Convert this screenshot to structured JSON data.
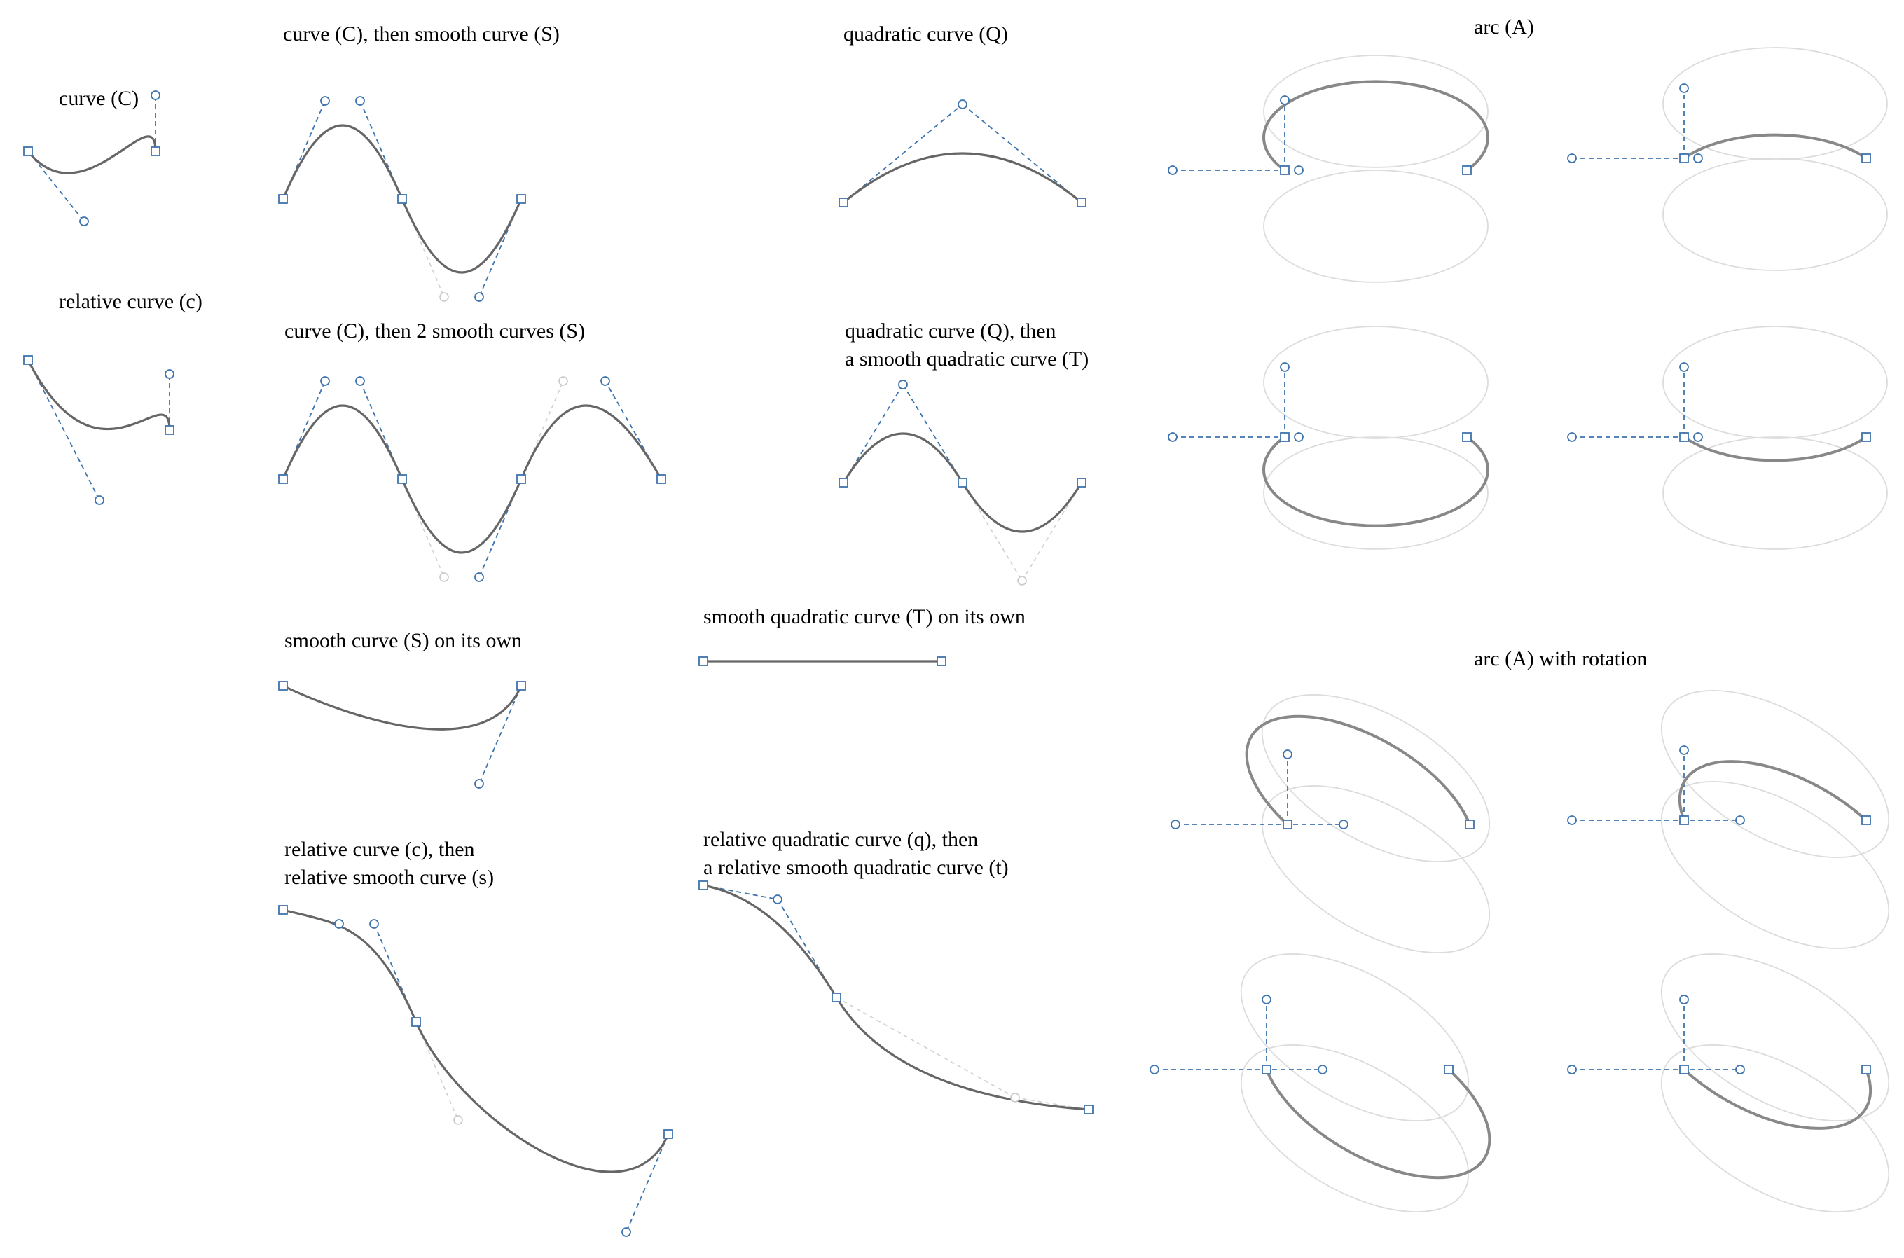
{
  "labels": {
    "curve_c": "curve (C)",
    "relative_curve_c": "relative curve (c)",
    "curve_then_smooth": "curve (C), then smooth curve (S)",
    "curve_then_2_smooth": "curve (C), then 2 smooth curves (S)",
    "smooth_on_own": "smooth curve (S) on its own",
    "rel_curve_then_rel_smooth_1": "relative curve (c), then",
    "rel_curve_then_rel_smooth_2": "relative smooth curve (s)",
    "quadratic_q": "quadratic curve (Q)",
    "quad_then_smooth_quad_1": "quadratic curve (Q), then",
    "quad_then_smooth_quad_2": "a smooth quadratic curve (T)",
    "smooth_quad_on_own": "smooth quadratic curve (T) on its own",
    "rel_quad_then_rel_smooth_quad_1": "relative quadratic curve (q), then",
    "rel_quad_then_rel_smooth_quad_2": "a relative smooth quadratic curve (t)",
    "arc_a": "arc (A)",
    "arc_a_rotation": "arc (A) with rotation"
  },
  "colors": {
    "curve": "#666666",
    "arc": "#888888",
    "ghost": "#dcdcdc",
    "handle": "#3e73ad"
  }
}
